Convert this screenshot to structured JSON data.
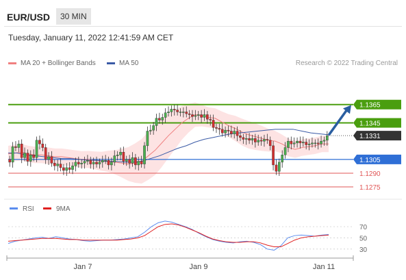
{
  "header": {
    "symbol": "EUR/USD",
    "timeframe": "30 MIN"
  },
  "timestamp": "Tuesday, January 11, 2022 12:41:59 AM CET",
  "legend": {
    "ma20_label": "MA 20 + Bollinger Bands",
    "ma50_label": "MA 50",
    "rsi_label": "RSI",
    "rsi9_label": "9MA",
    "research": "Research © 2022 Trading Central"
  },
  "colors": {
    "resistance": "#4a9e0f",
    "support": "#2f6fd6",
    "support_minor": "#e05555",
    "last_price": "#333333",
    "ma20": "#f08080",
    "ma50": "#3a5aa6",
    "rsi": "#5b8def",
    "rsi9": "#e02020",
    "candle_up": "#4caf50",
    "candle_down": "#d32f2f",
    "arrow": "#2a5ea0"
  },
  "chart_data": [
    {
      "type": "candlestick",
      "ylim": [
        1.1266,
        1.1397
      ],
      "x_tick_labels": [
        "Jan 7",
        "Jan 9",
        "Jan 11"
      ],
      "levels": [
        {
          "value": 1.1365,
          "label": "1.1365",
          "kind": "resistance"
        },
        {
          "value": 1.1345,
          "label": "1.1345",
          "kind": "resistance"
        },
        {
          "value": 1.1331,
          "label": "1.1331",
          "kind": "last"
        },
        {
          "value": 1.1305,
          "label": "1.1305",
          "kind": "support"
        },
        {
          "value": 1.129,
          "label": "1.1290",
          "kind": "support_minor"
        },
        {
          "value": 1.1275,
          "label": "1.1275",
          "kind": "support_minor"
        }
      ],
      "close": [
        1.1302,
        1.1319,
        1.1318,
        1.1322,
        1.1307,
        1.1312,
        1.1303,
        1.131,
        1.1307,
        1.1326,
        1.1322,
        1.1318,
        1.1305,
        1.1308,
        1.1301,
        1.1298,
        1.13,
        1.1296,
        1.1293,
        1.1296,
        1.1294,
        1.1298,
        1.1302,
        1.13,
        1.1301,
        1.1303,
        1.1304,
        1.13,
        1.1302,
        1.13,
        1.1302,
        1.1304,
        1.1304,
        1.1299,
        1.1302,
        1.1309,
        1.131,
        1.1313,
        1.1303,
        1.1305,
        1.1301,
        1.1307,
        1.1299,
        1.1303,
        1.13,
        1.132,
        1.1336,
        1.1337,
        1.1342,
        1.135,
        1.1348,
        1.1351,
        1.1356,
        1.1357,
        1.136,
        1.1359,
        1.1357,
        1.1357,
        1.1357,
        1.1355,
        1.1354,
        1.1352,
        1.1353,
        1.1354,
        1.1351,
        1.1354,
        1.1349,
        1.1348,
        1.134,
        1.1339,
        1.1338,
        1.1334,
        1.1337,
        1.1336,
        1.1333,
        1.1336,
        1.1331,
        1.1329,
        1.1327,
        1.1328,
        1.1326,
        1.1328,
        1.1324,
        1.1326,
        1.1325,
        1.1327,
        1.1326,
        1.132,
        1.1299,
        1.1292,
        1.1302,
        1.131,
        1.1318,
        1.1325,
        1.1322,
        1.1323,
        1.1325,
        1.1323,
        1.1324,
        1.1321,
        1.1322,
        1.1323,
        1.1323,
        1.1322,
        1.1325,
        1.1326,
        1.1331
      ],
      "ma20": [
        1.1311,
        1.1312,
        1.1313,
        1.1311,
        1.131,
        1.131,
        1.1309,
        1.1308,
        1.1308,
        1.1307,
        1.1306,
        1.1305,
        1.1305,
        1.1304,
        1.1303,
        1.1303,
        1.1302,
        1.1301,
        1.13,
        1.1301,
        1.1303,
        1.1309,
        1.1315,
        1.1323,
        1.1331,
        1.1338,
        1.1345,
        1.135,
        1.1354,
        1.1353,
        1.1351,
        1.135,
        1.1346,
        1.1342,
        1.1339,
        1.1335,
        1.1332,
        1.133,
        1.1328,
        1.1326,
        1.1325,
        1.1322,
        1.1318,
        1.1316,
        1.1318,
        1.1319,
        1.132,
        1.1322,
        1.1322
      ],
      "ma50": [
        1.1312,
        1.1312,
        1.131,
        1.1309,
        1.1308,
        1.1307,
        1.1306,
        1.1306,
        1.1305,
        1.1304,
        1.1304,
        1.1303,
        1.1303,
        1.1302,
        1.1302,
        1.1303,
        1.1306,
        1.1309,
        1.1313,
        1.1317,
        1.132,
        1.1324,
        1.1327,
        1.1329,
        1.1331,
        1.1333,
        1.1334,
        1.1335,
        1.1336,
        1.1337,
        1.1338,
        1.1338,
        1.1338,
        1.1336,
        1.1334,
        1.1333,
        1.1332
      ]
    },
    {
      "type": "line",
      "name": "RSI",
      "ylim": [
        20,
        86
      ],
      "y_tick_labels": [
        "70",
        "50",
        "30"
      ],
      "y_ticks": [
        70,
        50,
        30
      ],
      "rsi": [
        40,
        44,
        46,
        48,
        50,
        51,
        49,
        52,
        50,
        48,
        47,
        45,
        44,
        45,
        46,
        46,
        47,
        48,
        50,
        52,
        60,
        70,
        77,
        80,
        78,
        74,
        70,
        65,
        58,
        52,
        47,
        44,
        42,
        41,
        43,
        44,
        42,
        38,
        30,
        28,
        36,
        50,
        54,
        55,
        54,
        53,
        55,
        56
      ],
      "ma9": [
        44,
        45,
        46,
        47,
        48,
        49,
        49,
        49,
        48,
        47,
        47,
        46,
        46,
        46,
        46,
        46,
        46,
        47,
        48,
        50,
        54,
        62,
        70,
        74,
        75,
        73,
        69,
        64,
        59,
        53,
        48,
        45,
        43,
        42,
        42,
        43,
        43,
        41,
        37,
        34,
        34,
        40,
        46,
        50,
        52,
        53,
        54,
        55
      ]
    }
  ]
}
